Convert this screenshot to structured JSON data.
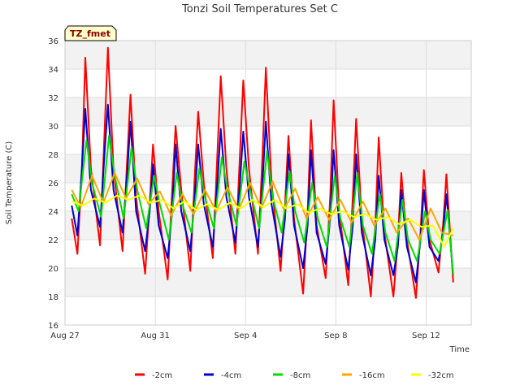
{
  "chart_data": {
    "type": "line",
    "title": "Tonzi Soil Temperatures Set C",
    "xlabel": "Time",
    "ylabel": "Soil Temperature (C)",
    "ylim": [
      16,
      36
    ],
    "yticks": [
      16,
      18,
      20,
      22,
      24,
      26,
      28,
      30,
      32,
      34,
      36
    ],
    "xlim": [
      0,
      18
    ],
    "xticks": [
      {
        "value": 0,
        "label": "Aug 27"
      },
      {
        "value": 4,
        "label": "Aug 31"
      },
      {
        "value": 8,
        "label": "Sep 4"
      },
      {
        "value": 12,
        "label": "Sep 8"
      },
      {
        "value": 16,
        "label": "Sep 12"
      }
    ],
    "grid": true,
    "legend_position": "bottom",
    "badge": "TZ_fmet",
    "series": [
      {
        "name": "-2cm",
        "color": "#ff0000",
        "x": [
          0.3,
          0.55,
          0.75,
          0.9,
          1.15,
          1.55,
          1.75,
          1.9,
          2.15,
          2.55,
          2.75,
          2.9,
          3.15,
          3.55,
          3.75,
          3.9,
          4.15,
          4.55,
          4.75,
          4.9,
          5.15,
          5.55,
          5.75,
          5.9,
          6.15,
          6.55,
          6.75,
          6.9,
          7.15,
          7.55,
          7.75,
          7.9,
          8.15,
          8.55,
          8.75,
          8.9,
          9.15,
          9.55,
          9.75,
          9.9,
          10.15,
          10.55,
          10.75,
          10.9,
          11.15,
          11.55,
          11.75,
          11.9,
          12.15,
          12.55,
          12.75,
          12.9,
          13.15,
          13.55,
          13.75,
          13.9,
          14.15,
          14.55,
          14.75,
          14.9,
          15.15,
          15.55,
          15.75,
          15.9,
          16.15,
          16.55,
          16.75,
          16.9,
          17.2
        ],
        "y": [
          23.5,
          21.0,
          27.0,
          34.8,
          27.0,
          21.6,
          29.5,
          35.5,
          27.0,
          21.2,
          27.5,
          32.2,
          25.0,
          19.6,
          24.5,
          28.7,
          24.0,
          19.2,
          25.5,
          30.0,
          25.5,
          19.8,
          26.5,
          31.0,
          26.0,
          20.7,
          28.0,
          33.5,
          27.0,
          21.0,
          28.0,
          33.2,
          27.0,
          21.0,
          28.0,
          34.1,
          26.0,
          19.8,
          24.5,
          29.3,
          23.5,
          18.2,
          24.0,
          30.4,
          23.0,
          19.3,
          25.0,
          31.8,
          24.0,
          18.8,
          25.0,
          30.5,
          23.5,
          18.0,
          23.0,
          29.2,
          22.5,
          18.0,
          22.0,
          26.7,
          22.0,
          17.9,
          22.5,
          26.9,
          22.0,
          19.7,
          23.0,
          26.6,
          19.0
        ]
      },
      {
        "name": "-4cm",
        "color": "#0000cc",
        "x": [
          0.3,
          0.55,
          0.75,
          0.9,
          1.15,
          1.55,
          1.75,
          1.9,
          2.15,
          2.55,
          2.75,
          2.9,
          3.15,
          3.55,
          3.75,
          3.9,
          4.15,
          4.55,
          4.75,
          4.9,
          5.15,
          5.55,
          5.75,
          5.9,
          6.15,
          6.55,
          6.75,
          6.9,
          7.15,
          7.55,
          7.75,
          7.9,
          8.15,
          8.55,
          8.75,
          8.9,
          9.15,
          9.55,
          9.75,
          9.9,
          10.15,
          10.55,
          10.75,
          10.9,
          11.15,
          11.55,
          11.75,
          11.9,
          12.15,
          12.55,
          12.75,
          12.9,
          13.15,
          13.55,
          13.75,
          13.9,
          14.15,
          14.55,
          14.75,
          14.9,
          15.15,
          15.55,
          15.75,
          15.9,
          16.15,
          16.55,
          16.75,
          16.9,
          17.2
        ],
        "y": [
          24.4,
          22.3,
          27.0,
          31.2,
          25.5,
          22.9,
          28.0,
          31.5,
          25.5,
          22.5,
          26.5,
          30.3,
          24.0,
          21.2,
          24.0,
          27.3,
          23.0,
          20.7,
          24.0,
          28.7,
          24.0,
          21.2,
          25.0,
          28.7,
          24.5,
          21.5,
          26.0,
          29.8,
          25.0,
          21.8,
          26.0,
          29.6,
          25.0,
          21.5,
          26.0,
          30.3,
          24.5,
          20.8,
          23.5,
          28.0,
          23.0,
          20.0,
          23.0,
          28.3,
          22.5,
          20.3,
          23.5,
          28.3,
          23.0,
          19.9,
          23.0,
          28.0,
          22.5,
          19.5,
          22.0,
          26.5,
          22.0,
          19.5,
          21.5,
          25.5,
          21.5,
          19.0,
          22.0,
          25.5,
          21.5,
          20.5,
          22.5,
          25.2,
          19.5
        ]
      },
      {
        "name": "-8cm",
        "color": "#00dd00",
        "x": [
          0.3,
          0.6,
          0.95,
          1.2,
          1.6,
          1.95,
          2.2,
          2.6,
          2.95,
          3.2,
          3.6,
          3.95,
          4.2,
          4.6,
          4.95,
          5.2,
          5.6,
          5.95,
          6.2,
          6.6,
          6.95,
          7.2,
          7.6,
          7.95,
          8.2,
          8.6,
          8.95,
          9.2,
          9.6,
          9.95,
          10.2,
          10.6,
          10.95,
          11.2,
          11.6,
          11.95,
          12.2,
          12.6,
          12.95,
          13.2,
          13.6,
          13.95,
          14.2,
          14.6,
          14.95,
          15.2,
          15.6,
          15.95,
          16.2,
          16.6,
          16.95,
          17.2
        ],
        "y": [
          25.2,
          24.0,
          29.0,
          26.0,
          23.6,
          29.3,
          26.5,
          23.5,
          28.5,
          25.5,
          22.8,
          26.5,
          24.5,
          22.0,
          26.7,
          24.5,
          22.5,
          27.0,
          25.0,
          22.8,
          27.8,
          25.5,
          23.0,
          27.5,
          25.5,
          22.8,
          28.2,
          25.0,
          22.5,
          26.8,
          24.0,
          21.8,
          26.0,
          23.5,
          21.5,
          26.5,
          23.5,
          21.5,
          26.7,
          23.0,
          21.0,
          25.2,
          22.5,
          20.5,
          24.8,
          22.0,
          20.5,
          24.0,
          22.0,
          21.0,
          24.1,
          19.5
        ]
      },
      {
        "name": "-16cm",
        "color": "#ffa500",
        "x": [
          0.3,
          0.7,
          1.2,
          1.7,
          2.2,
          2.7,
          3.2,
          3.7,
          4.2,
          4.7,
          5.2,
          5.7,
          6.2,
          6.7,
          7.2,
          7.7,
          8.2,
          8.7,
          9.2,
          9.7,
          10.2,
          10.7,
          11.2,
          11.7,
          12.2,
          12.7,
          13.2,
          13.7,
          14.2,
          14.7,
          15.2,
          15.7,
          16.2,
          16.7,
          17.2
        ],
        "y": [
          25.5,
          24.3,
          26.5,
          24.6,
          26.7,
          24.9,
          26.3,
          24.5,
          25.4,
          23.7,
          25.2,
          23.8,
          25.5,
          24.0,
          25.7,
          24.1,
          26.0,
          24.2,
          26.1,
          24.1,
          25.6,
          23.5,
          25.0,
          23.4,
          24.8,
          23.2,
          24.7,
          23.0,
          24.2,
          22.5,
          23.5,
          22.0,
          24.2,
          22.5,
          22.3
        ]
      },
      {
        "name": "-32cm",
        "color": "#ffff00",
        "x": [
          0.3,
          0.8,
          1.3,
          1.8,
          2.3,
          2.8,
          3.3,
          3.8,
          4.3,
          4.8,
          5.3,
          5.8,
          6.3,
          6.8,
          7.3,
          7.8,
          8.3,
          8.8,
          9.3,
          9.8,
          10.3,
          10.8,
          11.3,
          11.8,
          12.3,
          12.8,
          13.3,
          13.8,
          14.3,
          14.8,
          15.3,
          15.8,
          16.3,
          16.8,
          17.2
        ],
        "y": [
          24.7,
          24.4,
          24.9,
          24.6,
          25.1,
          24.8,
          25.1,
          24.6,
          24.8,
          24.2,
          24.7,
          24.1,
          24.5,
          24.1,
          24.6,
          24.2,
          24.8,
          24.3,
          24.8,
          24.2,
          24.5,
          23.9,
          24.2,
          23.8,
          24.0,
          23.6,
          23.8,
          23.4,
          23.6,
          23.1,
          23.4,
          22.9,
          23.0,
          21.5,
          22.8
        ]
      }
    ]
  }
}
